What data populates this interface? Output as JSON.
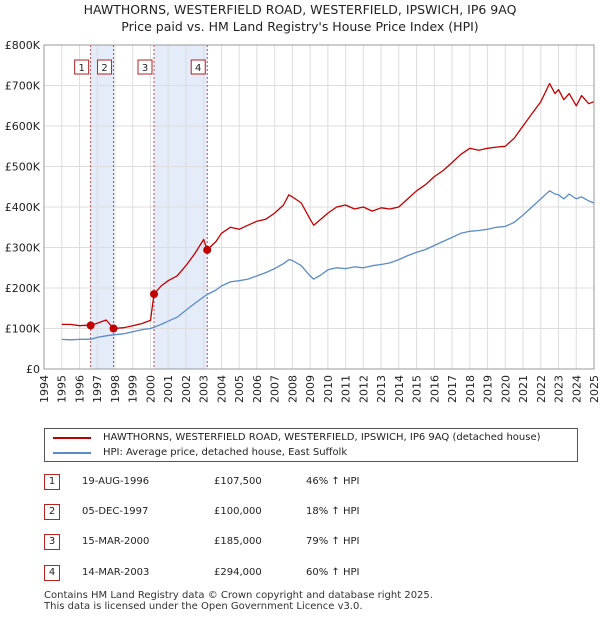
{
  "colors": {
    "property": "#c00000",
    "hpi": "#5b8cc8",
    "marker_box": "#b22222",
    "shade": "#dde6f7",
    "grid": "#dddddd"
  },
  "chart_data": {
    "type": "line",
    "title": "HAWTHORNS, WESTERFIELD ROAD, WESTERFIELD, IPSWICH, IP6 9AQ",
    "subtitle": "Price paid vs. HM Land Registry's House Price Index (HPI)",
    "ylim": [
      0,
      800000
    ],
    "xlim": [
      1994,
      2025
    ],
    "y_ticks": [
      {
        "value": 0,
        "label": "£0"
      },
      {
        "value": 100000,
        "label": "£100K"
      },
      {
        "value": 200000,
        "label": "£200K"
      },
      {
        "value": 300000,
        "label": "£300K"
      },
      {
        "value": 400000,
        "label": "£400K"
      },
      {
        "value": 500000,
        "label": "£500K"
      },
      {
        "value": 600000,
        "label": "£600K"
      },
      {
        "value": 700000,
        "label": "£700K"
      },
      {
        "value": 800000,
        "label": "£800K"
      }
    ],
    "x_ticks": [
      "1994",
      "1995",
      "1996",
      "1997",
      "1998",
      "1999",
      "2000",
      "2001",
      "2002",
      "2003",
      "2004",
      "2005",
      "2006",
      "2007",
      "2008",
      "2009",
      "2010",
      "2011",
      "2012",
      "2013",
      "2014",
      "2015",
      "2016",
      "2017",
      "2018",
      "2019",
      "2020",
      "2021",
      "2022",
      "2023",
      "2024",
      "2025"
    ],
    "series": [
      {
        "name": "HAWTHORNS, WESTERFIELD ROAD, WESTERFIELD, IPSWICH, IP6 9AQ (detached house)",
        "color": "#c00000",
        "points": [
          [
            1995.0,
            110000
          ],
          [
            1995.5,
            110000
          ],
          [
            1996.0,
            107000
          ],
          [
            1996.3,
            108000
          ],
          [
            1996.63,
            107500
          ],
          [
            1997.0,
            113000
          ],
          [
            1997.5,
            121000
          ],
          [
            1997.92,
            100000
          ],
          [
            1998.5,
            102000
          ],
          [
            1999.0,
            107000
          ],
          [
            1999.5,
            112000
          ],
          [
            2000.0,
            120000
          ],
          [
            2000.2,
            185000
          ],
          [
            2000.6,
            205000
          ],
          [
            2001.0,
            218000
          ],
          [
            2001.5,
            230000
          ],
          [
            2002.0,
            255000
          ],
          [
            2002.5,
            285000
          ],
          [
            2003.0,
            320000
          ],
          [
            2003.2,
            294000
          ],
          [
            2003.7,
            315000
          ],
          [
            2004.0,
            335000
          ],
          [
            2004.5,
            350000
          ],
          [
            2005.0,
            345000
          ],
          [
            2005.5,
            355000
          ],
          [
            2006.0,
            365000
          ],
          [
            2006.5,
            370000
          ],
          [
            2007.0,
            385000
          ],
          [
            2007.5,
            405000
          ],
          [
            2007.8,
            430000
          ],
          [
            2008.0,
            425000
          ],
          [
            2008.5,
            410000
          ],
          [
            2009.0,
            370000
          ],
          [
            2009.2,
            355000
          ],
          [
            2009.6,
            370000
          ],
          [
            2010.0,
            385000
          ],
          [
            2010.5,
            400000
          ],
          [
            2011.0,
            405000
          ],
          [
            2011.5,
            395000
          ],
          [
            2012.0,
            400000
          ],
          [
            2012.5,
            390000
          ],
          [
            2013.0,
            398000
          ],
          [
            2013.5,
            395000
          ],
          [
            2014.0,
            400000
          ],
          [
            2014.5,
            420000
          ],
          [
            2015.0,
            440000
          ],
          [
            2015.5,
            455000
          ],
          [
            2016.0,
            475000
          ],
          [
            2016.5,
            490000
          ],
          [
            2017.0,
            510000
          ],
          [
            2017.5,
            530000
          ],
          [
            2018.0,
            545000
          ],
          [
            2018.5,
            540000
          ],
          [
            2019.0,
            545000
          ],
          [
            2019.5,
            548000
          ],
          [
            2020.0,
            550000
          ],
          [
            2020.5,
            570000
          ],
          [
            2021.0,
            600000
          ],
          [
            2021.5,
            630000
          ],
          [
            2022.0,
            660000
          ],
          [
            2022.5,
            705000
          ],
          [
            2022.8,
            680000
          ],
          [
            2023.0,
            690000
          ],
          [
            2023.3,
            665000
          ],
          [
            2023.6,
            680000
          ],
          [
            2024.0,
            650000
          ],
          [
            2024.3,
            675000
          ],
          [
            2024.7,
            655000
          ],
          [
            2025.0,
            660000
          ]
        ]
      },
      {
        "name": "HPI: Average price, detached house, East Suffolk",
        "color": "#5b8cc8",
        "points": [
          [
            1995.0,
            73000
          ],
          [
            1995.5,
            72000
          ],
          [
            1996.0,
            73000
          ],
          [
            1996.63,
            73500
          ],
          [
            1997.0,
            78000
          ],
          [
            1997.5,
            82000
          ],
          [
            1997.92,
            84500
          ],
          [
            1998.5,
            87000
          ],
          [
            1999.0,
            92000
          ],
          [
            1999.5,
            97000
          ],
          [
            2000.0,
            100000
          ],
          [
            2000.2,
            103000
          ],
          [
            2000.6,
            110000
          ],
          [
            2001.0,
            118000
          ],
          [
            2001.5,
            128000
          ],
          [
            2002.0,
            145000
          ],
          [
            2002.5,
            162000
          ],
          [
            2003.0,
            178000
          ],
          [
            2003.2,
            184000
          ],
          [
            2003.7,
            195000
          ],
          [
            2004.0,
            205000
          ],
          [
            2004.5,
            215000
          ],
          [
            2005.0,
            218000
          ],
          [
            2005.5,
            222000
          ],
          [
            2006.0,
            230000
          ],
          [
            2006.5,
            238000
          ],
          [
            2007.0,
            248000
          ],
          [
            2007.5,
            260000
          ],
          [
            2007.8,
            270000
          ],
          [
            2008.0,
            268000
          ],
          [
            2008.5,
            255000
          ],
          [
            2009.0,
            230000
          ],
          [
            2009.2,
            222000
          ],
          [
            2009.6,
            232000
          ],
          [
            2010.0,
            245000
          ],
          [
            2010.5,
            250000
          ],
          [
            2011.0,
            248000
          ],
          [
            2011.5,
            252000
          ],
          [
            2012.0,
            250000
          ],
          [
            2012.5,
            255000
          ],
          [
            2013.0,
            258000
          ],
          [
            2013.5,
            262000
          ],
          [
            2014.0,
            270000
          ],
          [
            2014.5,
            280000
          ],
          [
            2015.0,
            288000
          ],
          [
            2015.5,
            295000
          ],
          [
            2016.0,
            305000
          ],
          [
            2016.5,
            315000
          ],
          [
            2017.0,
            325000
          ],
          [
            2017.5,
            335000
          ],
          [
            2018.0,
            340000
          ],
          [
            2018.5,
            342000
          ],
          [
            2019.0,
            345000
          ],
          [
            2019.5,
            350000
          ],
          [
            2020.0,
            352000
          ],
          [
            2020.5,
            362000
          ],
          [
            2021.0,
            380000
          ],
          [
            2021.5,
            400000
          ],
          [
            2022.0,
            420000
          ],
          [
            2022.5,
            440000
          ],
          [
            2022.8,
            432000
          ],
          [
            2023.0,
            430000
          ],
          [
            2023.3,
            420000
          ],
          [
            2023.6,
            432000
          ],
          [
            2024.0,
            420000
          ],
          [
            2024.3,
            425000
          ],
          [
            2024.7,
            415000
          ],
          [
            2025.0,
            410000
          ]
        ]
      }
    ],
    "sales": [
      {
        "num": "1",
        "date": "19-AUG-1996",
        "price": "£107,500",
        "hpi": "46% ↑ HPI",
        "x": 1996.63,
        "y": 107500
      },
      {
        "num": "2",
        "date": "05-DEC-1997",
        "price": "£100,000",
        "hpi": "18% ↑ HPI",
        "x": 1997.92,
        "y": 100000
      },
      {
        "num": "3",
        "date": "15-MAR-2000",
        "price": "£185,000",
        "hpi": "79% ↑ HPI",
        "x": 2000.2,
        "y": 185000
      },
      {
        "num": "4",
        "date": "14-MAR-2003",
        "price": "£294,000",
        "hpi": "60% ↑ HPI",
        "x": 2003.2,
        "y": 294000
      }
    ],
    "shaded_ranges": [
      [
        1996.63,
        1997.92
      ],
      [
        2000.2,
        2003.2
      ]
    ],
    "legend_position": "below"
  },
  "footer": {
    "line1": "Contains HM Land Registry data © Crown copyright and database right 2025.",
    "line2": "This data is licensed under the Open Government Licence v3.0."
  }
}
